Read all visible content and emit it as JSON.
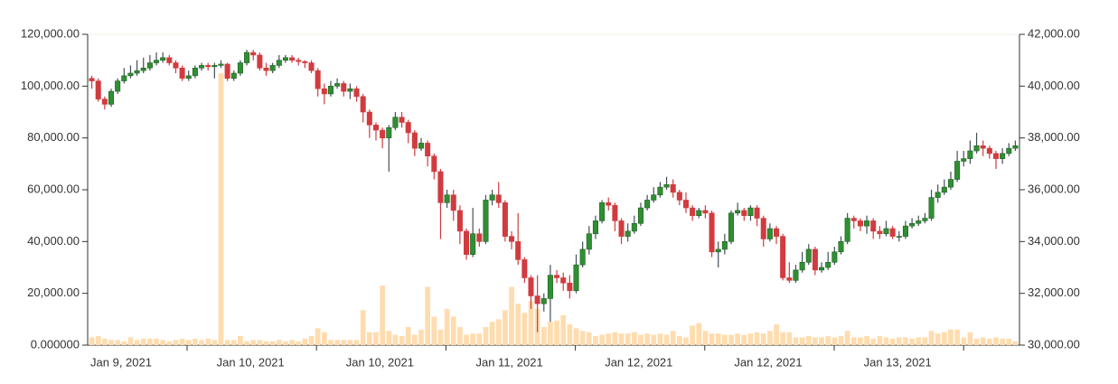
{
  "chart_data": {
    "type": "candlestick",
    "x_labels": [
      "Jan 9, 2021",
      "Jan 10, 2021",
      "Jan 10, 2021",
      "Jan 11, 2021",
      "Jan 12, 2021",
      "Jan 12, 2021",
      "Jan 13, 2021"
    ],
    "ylim": [
      0,
      120000
    ],
    "yticks": [
      {
        "value": 0,
        "label": "0.000000"
      },
      {
        "value": 20000,
        "label": "20,000.00"
      },
      {
        "value": 40000,
        "label": "40,000.00"
      },
      {
        "value": 60000,
        "label": "60,000.00"
      },
      {
        "value": 80000,
        "label": "80,000.00"
      },
      {
        "value": 100000,
        "label": "100,000.00"
      },
      {
        "value": 120000,
        "label": "120,000.00"
      }
    ],
    "y2lim": [
      30000,
      42000
    ],
    "y2ticks": [
      {
        "value": 30000,
        "label": "30,000.00"
      },
      {
        "value": 32000,
        "label": "32,000.00"
      },
      {
        "value": 34000,
        "label": "34,000.00"
      },
      {
        "value": 36000,
        "label": "36,000.00"
      },
      {
        "value": 38000,
        "label": "38,000.00"
      },
      {
        "value": 40000,
        "label": "40,000.00"
      },
      {
        "value": 42000,
        "label": "42,000.00"
      }
    ],
    "up_color": "#2f8f32",
    "down_color": "#d13b3f",
    "volume_color": "#ffdcae",
    "candles": {
      "axis": "y2",
      "open": [
        40300,
        40200,
        39500,
        39300,
        39800,
        40200,
        40400,
        40500,
        40600,
        40700,
        40900,
        41000,
        41100,
        40900,
        40700,
        40300,
        40400,
        40700,
        40800,
        40750,
        40800,
        40850,
        40300,
        40500,
        40900,
        41300,
        41200,
        40700,
        40600,
        40800,
        41000,
        41100,
        41000,
        40950,
        40900,
        40600,
        39900,
        39700,
        40000,
        40100,
        39800,
        39900,
        39600,
        39000,
        38500,
        38300,
        38000,
        38400,
        38800,
        38600,
        38200,
        37600,
        37800,
        37300,
        36700,
        35500,
        35800,
        35200,
        34400,
        33500,
        34300,
        34000,
        35600,
        35800,
        35500,
        34200,
        34000,
        33300,
        32600,
        31900,
        31600,
        31800,
        32700,
        32600,
        32400,
        32100,
        33100,
        33700,
        34300,
        34800,
        35500,
        35400,
        34800,
        34200,
        34400,
        34700,
        35300,
        35600,
        35800,
        36100,
        36200,
        35900,
        35600,
        35300,
        35000,
        35200,
        35100,
        33600,
        33700,
        34000,
        35100,
        35200,
        35000,
        35300,
        34900,
        34100,
        34500,
        34200,
        32600,
        32500,
        32900,
        33200,
        33700,
        32900,
        33000,
        33200,
        33600,
        34000,
        34900,
        34800,
        34600,
        34800,
        34400,
        34300,
        34500,
        34200,
        34200,
        34600,
        34700,
        34800,
        34900,
        35700,
        35900,
        36100,
        36400,
        37100,
        37200,
        37500,
        37700,
        37600,
        37400,
        37200,
        37400,
        37600
      ],
      "high": [
        40400,
        40300,
        39600,
        39900,
        40300,
        40700,
        40800,
        41000,
        41100,
        41200,
        41300,
        41300,
        41200,
        41000,
        40800,
        40600,
        40800,
        40900,
        40900,
        40900,
        41000,
        40900,
        40600,
        41000,
        41400,
        41400,
        41300,
        40900,
        40900,
        41200,
        41200,
        41200,
        41100,
        41000,
        41000,
        40700,
        40100,
        40200,
        40300,
        40200,
        40100,
        40000,
        39700,
        39100,
        38600,
        38400,
        38500,
        39000,
        39000,
        38700,
        38300,
        38000,
        37900,
        37400,
        36800,
        36000,
        36000,
        35400,
        34500,
        35300,
        34500,
        35800,
        36000,
        36300,
        35600,
        34400,
        35100,
        33400,
        32700,
        32700,
        32000,
        33100,
        32900,
        32800,
        32700,
        33500,
        34000,
        34600,
        35000,
        35600,
        35700,
        35500,
        34900,
        34700,
        35000,
        35500,
        35800,
        36100,
        36300,
        36500,
        36400,
        36000,
        35900,
        35400,
        35300,
        35400,
        35200,
        34000,
        34300,
        35200,
        35500,
        35300,
        35400,
        35400,
        35000,
        34700,
        34600,
        34300,
        33200,
        33100,
        33600,
        33900,
        33800,
        33200,
        33600,
        33800,
        34200,
        35100,
        35000,
        34900,
        35000,
        34900,
        34600,
        34800,
        34600,
        34400,
        34800,
        34900,
        35000,
        35100,
        36000,
        36200,
        36400,
        36700,
        37500,
        37500,
        37900,
        38200,
        37900,
        37700,
        37500,
        37600,
        37800,
        37900
      ],
      "low": [
        39900,
        39400,
        39100,
        39200,
        39700,
        40100,
        40300,
        40400,
        40500,
        40600,
        40800,
        40900,
        40800,
        40500,
        40200,
        40200,
        40300,
        40600,
        40600,
        40300,
        40700,
        40200,
        40200,
        40400,
        40800,
        41000,
        40600,
        40400,
        40500,
        40700,
        40900,
        40900,
        40800,
        40700,
        40500,
        39600,
        39300,
        39600,
        39900,
        39600,
        39500,
        39400,
        38600,
        38000,
        37900,
        37600,
        36700,
        38300,
        38400,
        37800,
        37300,
        37500,
        36900,
        36400,
        34100,
        35300,
        34800,
        33900,
        33300,
        33400,
        33800,
        33900,
        35400,
        35300,
        34000,
        33700,
        33100,
        32400,
        31400,
        30500,
        31300,
        30900,
        32400,
        32100,
        31800,
        32000,
        33000,
        33500,
        34100,
        34700,
        35200,
        34400,
        33900,
        34000,
        34300,
        34600,
        35200,
        35500,
        35700,
        36000,
        35700,
        35400,
        35100,
        34800,
        34900,
        34900,
        33400,
        33000,
        33500,
        33900,
        35000,
        34800,
        34800,
        34600,
        33800,
        34000,
        33900,
        32500,
        32400,
        32400,
        32800,
        33100,
        32700,
        32800,
        32900,
        33100,
        33500,
        33900,
        34500,
        34400,
        34300,
        34100,
        34100,
        34200,
        34100,
        34000,
        34100,
        34500,
        34600,
        34700,
        34800,
        35500,
        35800,
        36000,
        36300,
        36900,
        37000,
        37400,
        37300,
        37200,
        36800,
        37000,
        37300,
        37500
      ],
      "close": [
        40200,
        39500,
        39300,
        39800,
        40200,
        40400,
        40500,
        40600,
        40700,
        40900,
        41000,
        41100,
        40900,
        40700,
        40300,
        40400,
        40700,
        40800,
        40750,
        40800,
        40850,
        40300,
        40500,
        40900,
        41300,
        41200,
        40700,
        40600,
        40800,
        41000,
        41100,
        41000,
        40950,
        40900,
        40600,
        39900,
        39700,
        40000,
        40100,
        39800,
        39900,
        39600,
        39000,
        38500,
        38300,
        38000,
        38400,
        38800,
        38600,
        38200,
        37600,
        37800,
        37300,
        36700,
        35500,
        35800,
        35200,
        34400,
        33500,
        34300,
        34000,
        35600,
        35800,
        35500,
        34200,
        34000,
        33300,
        32600,
        31900,
        31600,
        31800,
        32700,
        32600,
        32400,
        32100,
        33100,
        33700,
        34300,
        34800,
        35500,
        35400,
        34800,
        34200,
        34400,
        34700,
        35300,
        35600,
        35800,
        36100,
        36200,
        35900,
        35600,
        35300,
        35000,
        35200,
        35100,
        33600,
        33700,
        34000,
        35100,
        35200,
        35000,
        35300,
        34900,
        34100,
        34500,
        34200,
        32600,
        32500,
        32900,
        33200,
        33700,
        32900,
        33000,
        33200,
        33600,
        34000,
        34900,
        34800,
        34600,
        34800,
        34400,
        34300,
        34500,
        34200,
        34200,
        34600,
        34700,
        34800,
        34900,
        35700,
        35900,
        36100,
        36400,
        37100,
        37200,
        37500,
        37700,
        37600,
        37400,
        37200,
        37400,
        37600,
        37700
      ]
    },
    "volume": [
      3000,
      3500,
      2500,
      2000,
      2000,
      1500,
      3000,
      2000,
      2500,
      2500,
      2500,
      2000,
      1500,
      2000,
      2500,
      2000,
      2500,
      2000,
      2500,
      2000,
      105000,
      2000,
      2000,
      3500,
      1500,
      2000,
      2000,
      1500,
      1500,
      2000,
      1500,
      2000,
      1500,
      2500,
      3500,
      6500,
      5000,
      2000,
      2000,
      2000,
      2000,
      2000,
      13500,
      5000,
      5000,
      23000,
      5500,
      4000,
      3500,
      7000,
      4000,
      6000,
      22500,
      11000,
      6000,
      14000,
      11000,
      7000,
      4000,
      4500,
      4500,
      7000,
      9000,
      10000,
      13500,
      22500,
      16000,
      12500,
      17000,
      14000,
      7000,
      9000,
      9500,
      11500,
      8000,
      6500,
      5500,
      5000,
      3500,
      4000,
      4500,
      5000,
      4500,
      4500,
      5000,
      4000,
      4500,
      4000,
      4500,
      4000,
      5500,
      3500,
      3000,
      7500,
      8500,
      5500,
      4500,
      4500,
      4000,
      4000,
      4500,
      4000,
      4500,
      5000,
      4500,
      5500,
      8000,
      5000,
      5000,
      3000,
      3000,
      3500,
      3000,
      3000,
      3500,
      3000,
      3500,
      5500,
      3000,
      3000,
      3500,
      2500,
      3500,
      3000,
      2500,
      3000,
      3000,
      2500,
      3000,
      3000,
      5500,
      4500,
      5000,
      6000,
      6000,
      3000,
      5000,
      2500,
      3000,
      2500,
      3000,
      2500,
      2500,
      1500
    ]
  }
}
